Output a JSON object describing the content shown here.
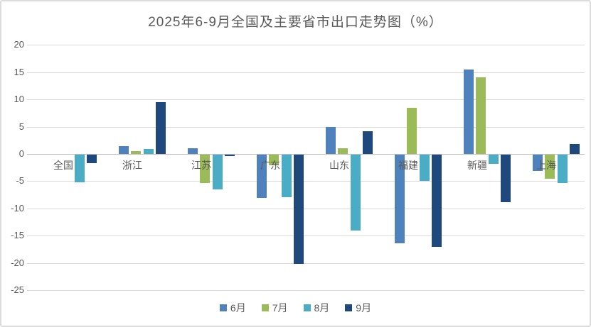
{
  "chart_data": {
    "type": "bar",
    "title": "2025年6-9月全国及主要省市出口走势图（%）",
    "categories": [
      "全国",
      "浙江",
      "江苏",
      "广东",
      "山东",
      "福建",
      "新疆",
      "上海"
    ],
    "series": [
      {
        "name": "6月",
        "color": "#4F81BD",
        "values": [
          0,
          1.4,
          1.0,
          -8.0,
          4.9,
          -16.3,
          15.5,
          -3.0
        ]
      },
      {
        "name": "7月",
        "color": "#9BBB59",
        "values": [
          0,
          0.5,
          -5.2,
          -2.0,
          1.0,
          8.4,
          14.0,
          -4.4
        ]
      },
      {
        "name": "8月",
        "color": "#4BACC6",
        "values": [
          -5.1,
          0.9,
          -6.4,
          -7.8,
          -13.9,
          -4.8,
          -1.7,
          -5.2
        ]
      },
      {
        "name": "9月",
        "color": "#1F497D",
        "values": [
          -1.5,
          9.5,
          -0.3,
          -20.0,
          4.2,
          -16.9,
          -8.7,
          1.8
        ]
      }
    ],
    "yticks": [
      20,
      15,
      10,
      5,
      0,
      -5,
      -10,
      -15,
      -20,
      -25
    ],
    "ylim": [
      -25,
      20
    ],
    "xlabel": "",
    "ylabel": "",
    "grid": true,
    "legend_position": "bottom"
  },
  "colors": {
    "gridline": "#D9D9D9",
    "axis_line": "#BFBFBF",
    "text": "#595959",
    "frame_border": "#DCDCDC",
    "background": "#FFFFFF"
  }
}
